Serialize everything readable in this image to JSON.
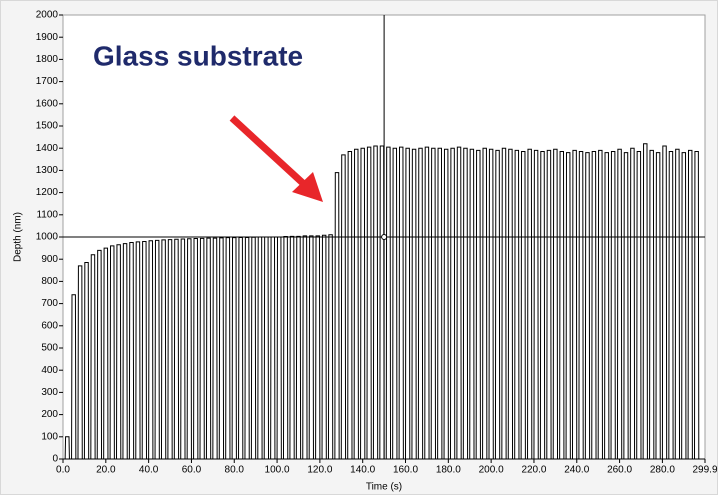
{
  "chart_data": {
    "type": "line",
    "annotation": "Glass substrate",
    "xlabel": "Time (s)",
    "ylabel": "Depth (nm)",
    "color": "#000000",
    "xlim": [
      0,
      299.9
    ],
    "ylim": [
      0,
      2000
    ],
    "xticks": [
      {
        "value": 0,
        "label": "0.0"
      },
      {
        "value": 20,
        "label": "20.0"
      },
      {
        "value": 40,
        "label": "40.0"
      },
      {
        "value": 60,
        "label": "60.0"
      },
      {
        "value": 80,
        "label": "80.0"
      },
      {
        "value": 100,
        "label": "100.0"
      },
      {
        "value": 120,
        "label": "120.0"
      },
      {
        "value": 140,
        "label": "140.0"
      },
      {
        "value": 160,
        "label": "160.0"
      },
      {
        "value": 180,
        "label": "180.0"
      },
      {
        "value": 200,
        "label": "200.0"
      },
      {
        "value": 220,
        "label": "220.0"
      },
      {
        "value": 240,
        "label": "240.0"
      },
      {
        "value": 260,
        "label": "260.0"
      },
      {
        "value": 280,
        "label": "280.0"
      },
      299.9
    ],
    "yticks": [
      0,
      100,
      200,
      300,
      400,
      500,
      600,
      700,
      800,
      900,
      1000,
      1100,
      1200,
      1300,
      1400,
      1500,
      1600,
      1700,
      1800,
      1900,
      2000
    ],
    "cursor": {
      "x": 150,
      "y": 1000
    },
    "x": [
      1,
      4,
      7,
      10,
      13,
      16,
      19,
      22,
      25,
      28,
      31,
      34,
      37,
      40,
      43,
      46,
      49,
      52,
      55,
      58,
      61,
      64,
      67,
      70,
      73,
      76,
      79,
      82,
      85,
      88,
      91,
      94,
      97,
      100,
      103,
      106,
      109,
      112,
      115,
      118,
      121,
      124,
      127,
      130,
      133,
      136,
      139,
      142,
      145,
      148,
      151,
      154,
      157,
      160,
      163,
      166,
      169,
      172,
      175,
      178,
      181,
      184,
      187,
      190,
      193,
      196,
      199,
      202,
      205,
      208,
      211,
      214,
      217,
      220,
      223,
      226,
      229,
      232,
      235,
      238,
      241,
      244,
      247,
      250,
      253,
      256,
      259,
      262,
      265,
      268,
      271,
      274,
      277,
      280,
      283,
      286,
      289,
      292,
      295
    ],
    "values": [
      100,
      740,
      870,
      885,
      920,
      940,
      950,
      960,
      965,
      970,
      975,
      978,
      980,
      983,
      985,
      987,
      988,
      990,
      991,
      992,
      993,
      994,
      995,
      995,
      996,
      997,
      997,
      998,
      998,
      999,
      1000,
      1000,
      1000,
      1000,
      1002,
      1003,
      1003,
      1005,
      1005,
      1005,
      1008,
      1010,
      1290,
      1370,
      1385,
      1395,
      1400,
      1405,
      1410,
      1410,
      1405,
      1400,
      1405,
      1400,
      1395,
      1400,
      1405,
      1400,
      1400,
      1395,
      1400,
      1405,
      1400,
      1395,
      1390,
      1400,
      1395,
      1390,
      1400,
      1395,
      1390,
      1385,
      1395,
      1390,
      1385,
      1390,
      1395,
      1385,
      1380,
      1390,
      1385,
      1380,
      1385,
      1390,
      1380,
      1385,
      1395,
      1380,
      1400,
      1385,
      1420,
      1390,
      1380,
      1410,
      1385,
      1395,
      1380,
      1390,
      1385
    ]
  }
}
